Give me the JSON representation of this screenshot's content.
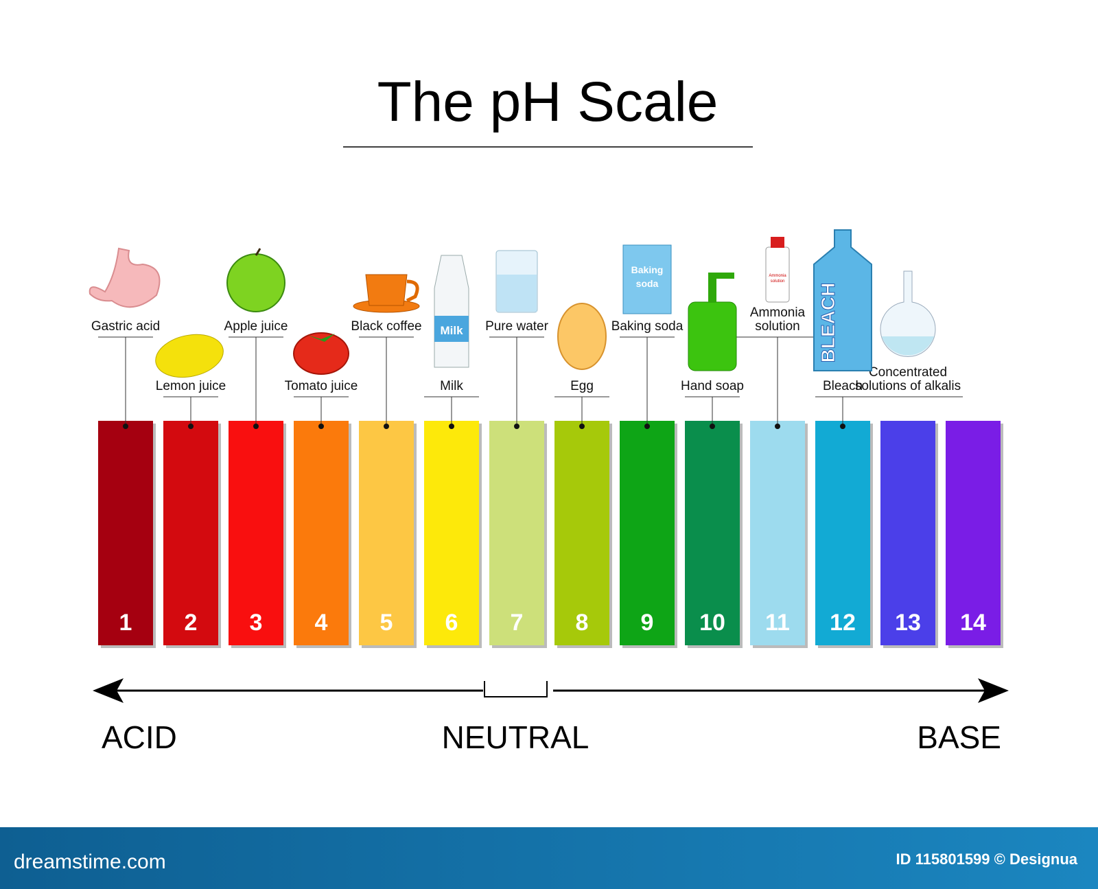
{
  "title": "The pH Scale",
  "strips": [
    {
      "number": 1,
      "color": "#a50010",
      "label": [
        "Gastric acid"
      ],
      "row": "top",
      "pointer": true
    },
    {
      "number": 2,
      "color": "#d30a0f",
      "label": [
        "Lemon juice"
      ],
      "row": "low",
      "pointer": true
    },
    {
      "number": 3,
      "color": "#f90f0f",
      "label": [
        "Apple juice"
      ],
      "row": "top",
      "pointer": true
    },
    {
      "number": 4,
      "color": "#fb7a0c",
      "label": [
        "Tomato juice"
      ],
      "row": "low",
      "pointer": true
    },
    {
      "number": 5,
      "color": "#fdc744",
      "label": [
        "Black coffee"
      ],
      "row": "top",
      "pointer": true
    },
    {
      "number": 6,
      "color": "#fde90a",
      "label": [
        "Milk"
      ],
      "row": "low",
      "pointer": true
    },
    {
      "number": 7,
      "color": "#cde07a",
      "label": [
        "Pure water"
      ],
      "row": "top",
      "pointer": true
    },
    {
      "number": 8,
      "color": "#a6c90a",
      "label": [
        "Egg"
      ],
      "row": "low",
      "pointer": true
    },
    {
      "number": 9,
      "color": "#0ea516",
      "label": [
        "Baking soda"
      ],
      "row": "top",
      "pointer": true
    },
    {
      "number": 10,
      "color": "#0a8e4c",
      "label": [
        "Hand soap"
      ],
      "row": "low",
      "pointer": true
    },
    {
      "number": 11,
      "color": "#9ddbee",
      "label": [
        "Ammonia",
        "solution"
      ],
      "row": "top",
      "pointer": true
    },
    {
      "number": 12,
      "color": "#12aad4",
      "label": [
        "Bleach"
      ],
      "row": "low",
      "pointer": true
    },
    {
      "number": 13,
      "color": "#4b3fe9",
      "label": [
        "Concentrated",
        "solutions of alkalis"
      ],
      "row": "low",
      "pointer": false
    },
    {
      "number": 14,
      "color": "#7a1de6",
      "label": null,
      "row": null,
      "pointer": false
    }
  ],
  "icon_texts": {
    "milk": "Milk",
    "baking_soda": [
      "Baking",
      "soda"
    ],
    "ammonia": [
      "Ammonia",
      "solution"
    ],
    "bleach": "BLEACH"
  },
  "axis": {
    "left": "ACID",
    "center": "NEUTRAL",
    "right": "BASE"
  },
  "footer": {
    "site": "dreamstime.com",
    "id": "ID 115801599 © Designua"
  }
}
